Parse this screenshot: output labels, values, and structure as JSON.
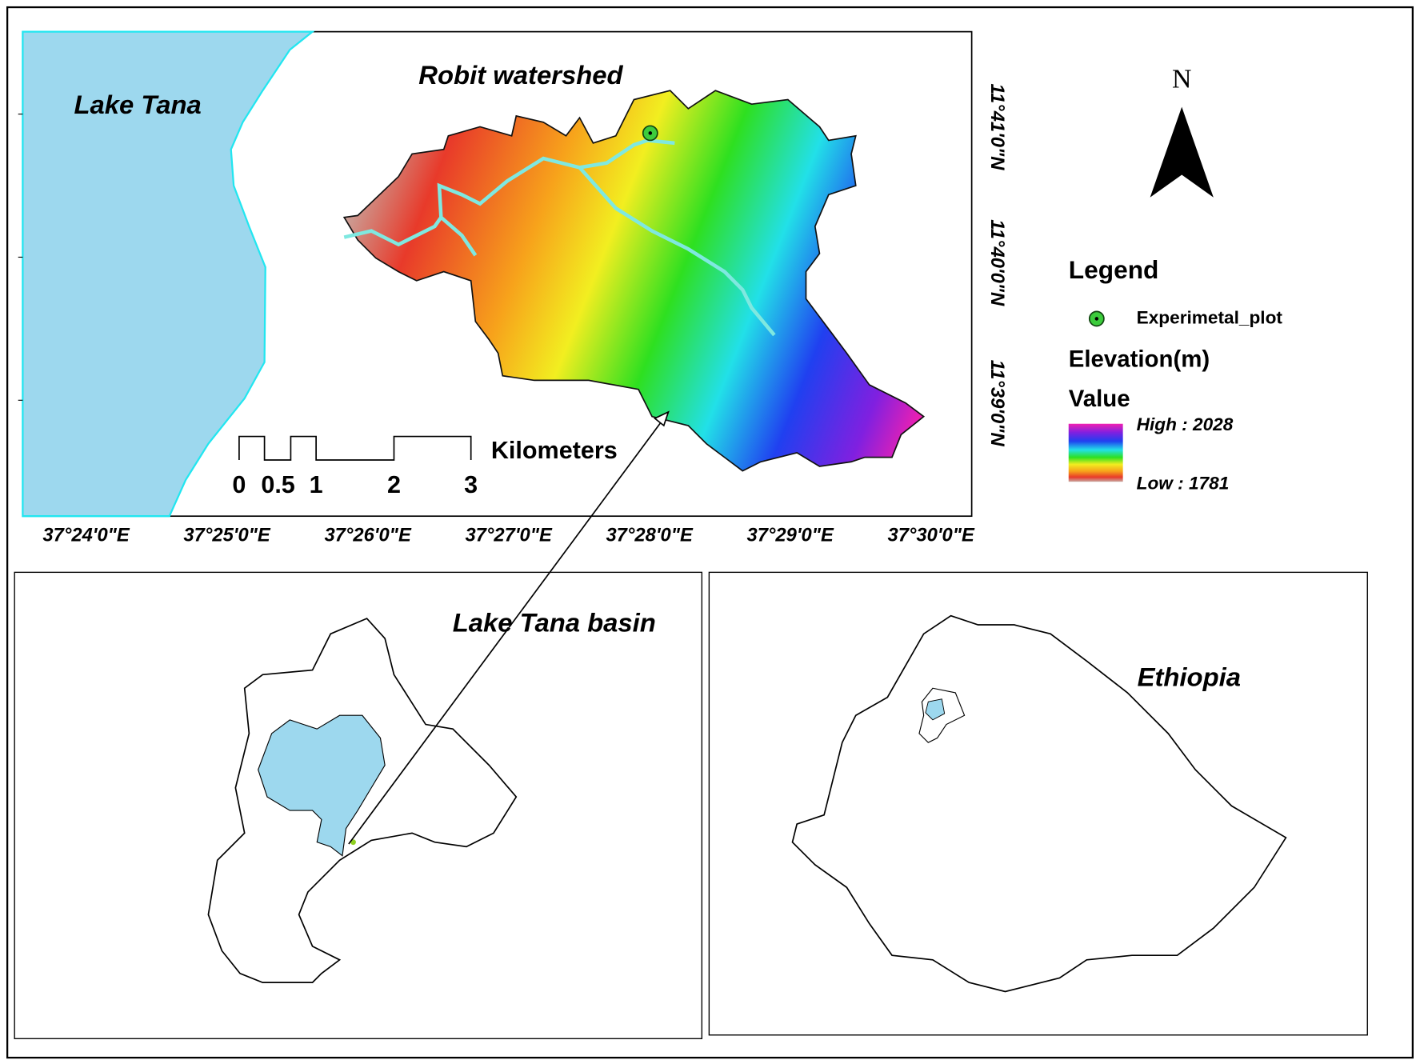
{
  "main_map": {
    "lake_label": "Lake Tana",
    "title": "Robit watershed",
    "latitude_labels": [
      "11°41'0\"N",
      "11°40'0\"N",
      "11°39'0\"N"
    ],
    "longitude_labels": [
      "37°24'0\"E",
      "37°25'0\"E",
      "37°26'0\"E",
      "37°27'0\"E",
      "37°28'0\"E",
      "37°29'0\"E",
      "37°30'0\"E"
    ],
    "scale_bar": {
      "labels": [
        "0",
        "0.5",
        "1",
        "2",
        "3"
      ],
      "unit": "Kilometers"
    }
  },
  "north_arrow": "N",
  "legend": {
    "title": "Legend",
    "point_label": "Experimetal_plot",
    "raster_title": "Elevation(m)",
    "value_title": "Value",
    "high": "High : 2028",
    "low": "Low : 1781"
  },
  "inset_basin": {
    "title": "Lake Tana basin"
  },
  "inset_country": {
    "title": "Ethiopia"
  }
}
